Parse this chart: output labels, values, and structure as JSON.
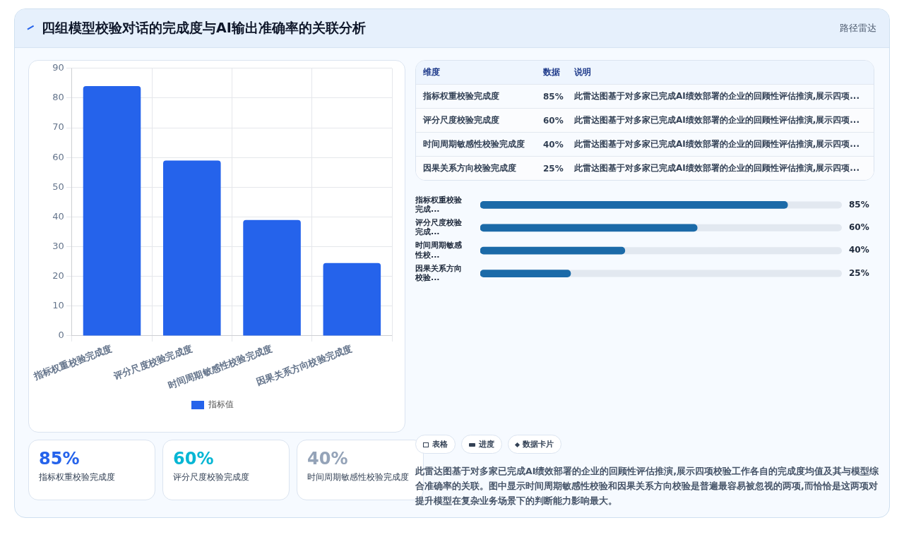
{
  "chart_data": [
    {
      "type": "other",
      "title": "四组模型校验对话的完成度与AI输出准确率的关联分析",
      "subtitle": "路径雷达"
    },
    {
      "type": "bar",
      "categories": [
        "指标权重校验完成度",
        "评分尺度校验完成度",
        "时间周期敏感性校验完成度",
        "因果关系方向校验完成度"
      ],
      "series": [
        {
          "name": "指标值",
          "color": "#2563eb",
          "values": [
            84,
            59,
            39,
            24.5
          ]
        }
      ],
      "ylim": [
        0,
        90
      ],
      "yticks": [
        0,
        10,
        20,
        30,
        40,
        50,
        60,
        70,
        80,
        90
      ],
      "grid": true,
      "legend": "bottom"
    },
    {
      "type": "other",
      "categories": [
        "维度",
        "指标权重校验完成度",
        "评分尺度校验完成度",
        "时间周期敏感性校验完成度",
        "因果关系方向校验完成度"
      ],
      "annotations": [
        "数据",
        "85%",
        "60%",
        "40%",
        "25%",
        "说明",
        "此雷达图基于对多家已完成AI绩效部署的企业的回顾性评估推演,展示四项...",
        "此雷达图基于对多家已完成AI绩效部署的企业的回顾性评估推演,展示四项...",
        "此雷达图基于对多家已完成AI绩效部署的企业的回顾性评估推演,展示四项...",
        "此雷达图基于对多家已完成AI绩效部署的企业的回顾性评估推演,展示四项..."
      ]
    },
    {
      "type": "bar",
      "orientation": "horizontal",
      "categories": [
        "指标权重校验完成...",
        "评分尺度校验完成...",
        "时间周期敏感性校...",
        "因果关系方向校验..."
      ],
      "values": [
        85,
        60,
        40,
        25
      ],
      "color": "#1b6aa8",
      "value_labels": [
        "85%",
        "60%",
        "40%",
        "25%"
      ],
      "xlim": [
        0,
        100
      ],
      "tick_labels": "y"
    },
    {
      "type": "other",
      "categories": [
        "指标权重校验完成度",
        "评分尺度校验完成度",
        "时间周期敏感性校验完成度"
      ],
      "value_labels": [
        "85%",
        "60%",
        "40%"
      ]
    },
    {
      "type": "other",
      "annotations": [
        "表格",
        "进度",
        "数据卡片",
        "此雷达图基于对多家已完成AI绩效部署的企业的回顾性评估推演,展示四项校验工作各自的完成度均值及其与模型综合准确率的关联。图中显示时间周期敏感性校验和因果关系方向校验是普遍最容易被忽视的两项,而恰恰是这两项对提升模型在复杂业务场景下的判断能力影响最大。"
      ]
    }
  ]
}
